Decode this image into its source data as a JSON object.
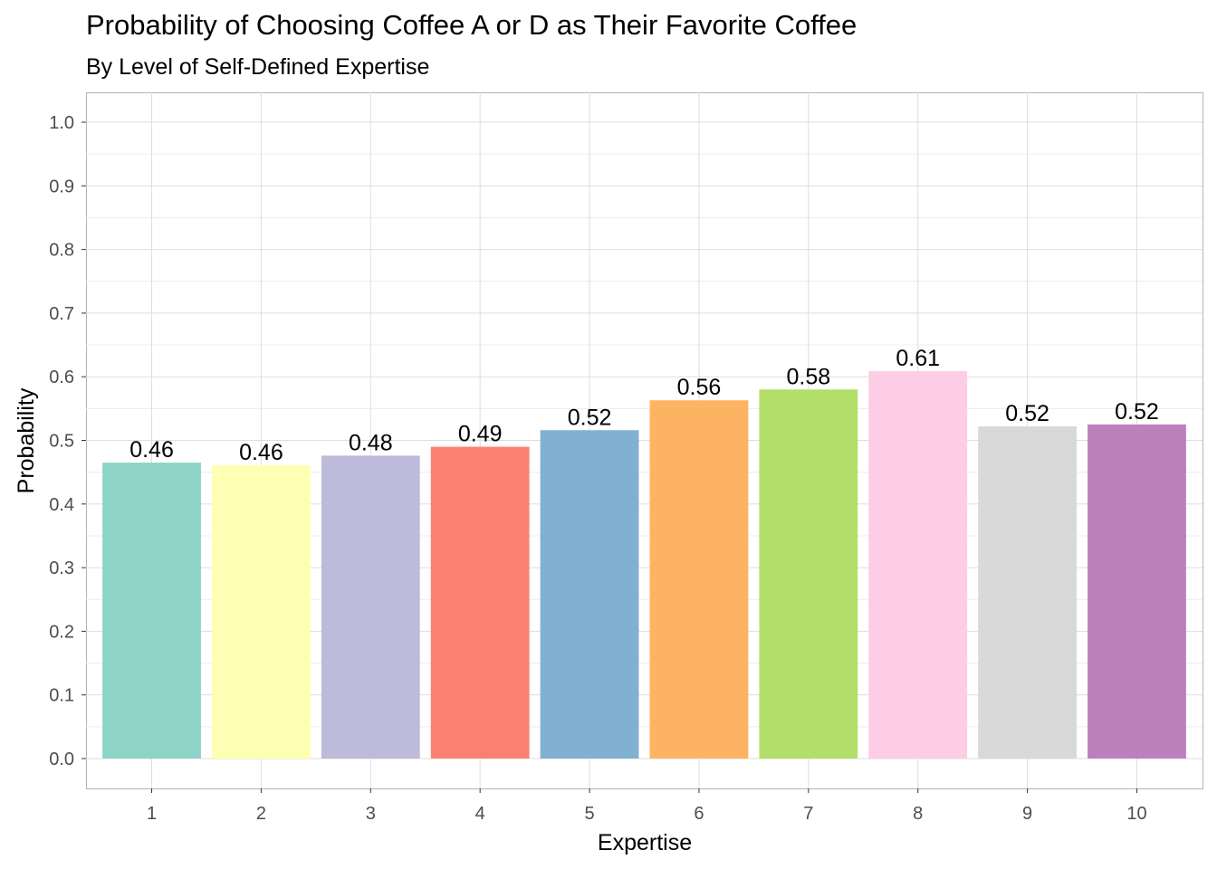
{
  "chart_data": {
    "type": "bar",
    "title": "Probability of Choosing Coffee A or D as Their Favorite Coffee",
    "subtitle": "By Level of Self-Defined Expertise",
    "xlabel": "Expertise",
    "ylabel": "Probability",
    "categories": [
      "1",
      "2",
      "3",
      "4",
      "5",
      "6",
      "7",
      "8",
      "9",
      "10"
    ],
    "values": [
      0.465,
      0.461,
      0.476,
      0.49,
      0.516,
      0.563,
      0.58,
      0.609,
      0.522,
      0.525
    ],
    "data_labels": [
      "0.46",
      "0.46",
      "0.48",
      "0.49",
      "0.52",
      "0.56",
      "0.58",
      "0.61",
      "0.52",
      "0.52"
    ],
    "colors": [
      "#8DD3C7",
      "#FFFFB3",
      "#BEBADA",
      "#FB8072",
      "#80B1D3",
      "#FDB462",
      "#B3DE69",
      "#FCCDE5",
      "#D9D9D9",
      "#BC80BD"
    ],
    "ylim": [
      -0.047,
      1.047
    ],
    "yticks": [
      0.0,
      0.1,
      0.2,
      0.3,
      0.4,
      0.5,
      0.6,
      0.7,
      0.8,
      0.9,
      1.0
    ],
    "ytick_labels": [
      "0.0",
      "0.1",
      "0.2",
      "0.3",
      "0.4",
      "0.5",
      "0.6",
      "0.7",
      "0.8",
      "0.9",
      "1.0"
    ],
    "grid": true,
    "legend": "none"
  }
}
